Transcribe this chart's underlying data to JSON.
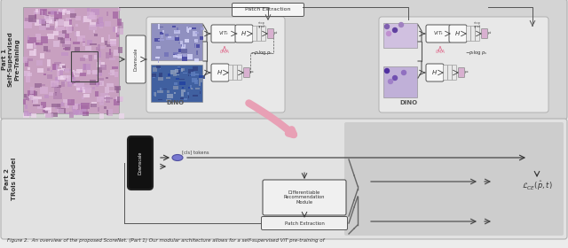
{
  "figure_caption": "Figure 2.  An overview of the proposed ScoreNet. (Part 1) Our modular architecture allows for a self-supervised ViT pre-training of",
  "part1_label": "Part 1\nSelf-Supervised\nPre-Training",
  "part2_label": "Part 2\nTRoIs Model",
  "patch_extraction_label": "Patch Extraction",
  "downscale_label": "Downscale",
  "dino_label": "DINO",
  "cls_tokens_label": "[cls] tokens",
  "drm_label": "Differentiable\nRecommendation\nModule",
  "patch_ext_label": "Patch Extraction",
  "cma_label": "CMA",
  "vit_label": "ViT_t",
  "h_label": "H",
  "stop_label": "stop\ngrad",
  "neg_entropy": "-p_t log p_s",
  "ps_label": "p_t",
  "ps_label2": "p_s",
  "part1_bg": "#d4d4d4",
  "part2_bg": "#e2e2e2",
  "part2_right_bg": "#cdcdcd",
  "dino_inner_bg": "#e8e8e8",
  "white": "#ffffff",
  "fig_bg": "#ececec"
}
